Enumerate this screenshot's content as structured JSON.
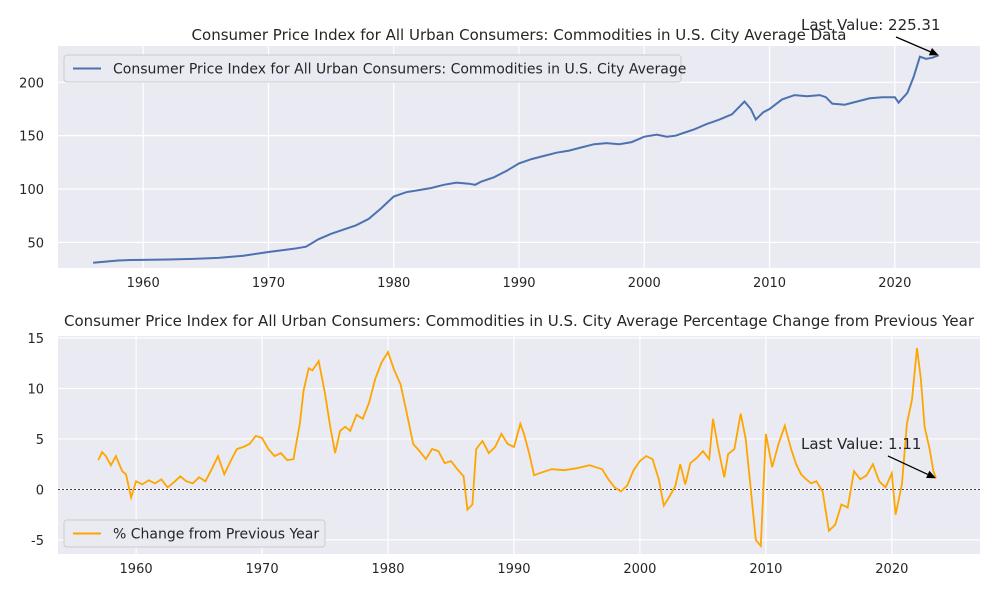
{
  "colors": {
    "axes_bg": "#eaeaf2",
    "grid": "#ffffff",
    "cpi_line": "#4c72b0",
    "pct_line": "#ffa500",
    "zero_line": "#000000",
    "text": "#262626"
  },
  "chart_data": [
    {
      "type": "line",
      "title": "Consumer Price Index for All Urban Consumers: Commodities in U.S. City Average Data",
      "xlabel": "",
      "ylabel": "",
      "xlim": [
        1953.2,
        2026.8
      ],
      "ylim": [
        26,
        234
      ],
      "xticks": [
        1960,
        1970,
        1980,
        1990,
        2000,
        2010,
        2020
      ],
      "yticks": [
        50,
        100,
        150,
        200
      ],
      "grid": true,
      "legend_position": "top-left",
      "series": [
        {
          "name": "Consumer Price Index for All Urban Consumers: Commodities in U.S. City Average",
          "x": [
            1956.0,
            1957.0,
            1958.0,
            1959.0,
            1960.0,
            1962.0,
            1964.0,
            1966.0,
            1968.0,
            1970.0,
            1972.0,
            1973.0,
            1974.0,
            1975.0,
            1976.0,
            1977.0,
            1978.0,
            1979.0,
            1980.0,
            1981.0,
            1982.0,
            1983.0,
            1984.0,
            1985.0,
            1986.0,
            1986.5,
            1987.0,
            1988.0,
            1989.0,
            1990.0,
            1991.0,
            1992.0,
            1993.0,
            1994.0,
            1995.0,
            1996.0,
            1997.0,
            1998.0,
            1999.0,
            2000.0,
            2001.0,
            2001.8,
            2002.5,
            2003.0,
            2004.0,
            2005.0,
            2005.5,
            2006.0,
            2007.0,
            2008.0,
            2008.5,
            2008.9,
            2009.5,
            2010.0,
            2011.0,
            2012.0,
            2013.0,
            2014.0,
            2014.5,
            2015.0,
            2016.0,
            2017.0,
            2018.0,
            2019.0,
            2020.0,
            2020.3,
            2021.0,
            2021.5,
            2022.0,
            2022.5,
            2023.0,
            2023.5
          ],
          "y": [
            31,
            32,
            33,
            33.5,
            33.6,
            34,
            34.5,
            35.5,
            37.5,
            41,
            44,
            46,
            53,
            58,
            62,
            66,
            72,
            82,
            93,
            97,
            99,
            101,
            104,
            106,
            105,
            104,
            107,
            111,
            117,
            124,
            128,
            131,
            134,
            136,
            139,
            142,
            143,
            142,
            144,
            149,
            151,
            149,
            150,
            152,
            156,
            161,
            163,
            165,
            170,
            182,
            175,
            165,
            172,
            175,
            184,
            188,
            187,
            188,
            186,
            180,
            179,
            182,
            185,
            186,
            186,
            181,
            190,
            205,
            224,
            222,
            223,
            225.31
          ]
        }
      ],
      "annotations": [
        {
          "text": "Last Value: 225.31",
          "x": 2023.5,
          "y": 225.31
        }
      ]
    },
    {
      "type": "line",
      "title": "Consumer Price Index for All Urban Consumers: Commodities in U.S. City Average Percentage Change from Previous Year",
      "xlabel": "",
      "ylabel": "",
      "xlim": [
        1953.8,
        2027.0
      ],
      "ylim": [
        -6.4,
        15.2
      ],
      "xticks": [
        1960,
        1970,
        1980,
        1990,
        2000,
        2010,
        2020
      ],
      "yticks": [
        -5,
        0,
        5,
        10,
        15
      ],
      "grid": true,
      "legend_position": "bottom-left",
      "reference_line": 0,
      "series": [
        {
          "name": "% Change from Previous Year",
          "x": [
            1957.0,
            1957.3,
            1957.6,
            1958.0,
            1958.4,
            1958.9,
            1959.2,
            1959.6,
            1960.0,
            1960.5,
            1961.0,
            1961.5,
            1962.0,
            1962.5,
            1963.0,
            1963.5,
            1964.0,
            1964.5,
            1965.0,
            1965.5,
            1966.0,
            1966.5,
            1967.0,
            1967.5,
            1968.0,
            1968.5,
            1969.0,
            1969.5,
            1970.0,
            1970.5,
            1971.0,
            1971.5,
            1972.0,
            1972.5,
            1973.0,
            1973.3,
            1973.7,
            1974.0,
            1974.5,
            1975.0,
            1975.4,
            1975.8,
            1976.2,
            1976.6,
            1977.0,
            1977.5,
            1978.0,
            1978.5,
            1979.0,
            1979.5,
            1980.0,
            1980.5,
            1981.0,
            1981.5,
            1982.0,
            1982.5,
            1983.0,
            1983.5,
            1984.0,
            1984.5,
            1985.0,
            1985.5,
            1986.0,
            1986.3,
            1986.7,
            1987.0,
            1987.5,
            1988.0,
            1988.5,
            1989.0,
            1989.5,
            1990.0,
            1990.5,
            1990.8,
            1991.2,
            1991.6,
            1992.0,
            1993.0,
            1994.0,
            1995.0,
            1996.0,
            1997.0,
            1997.5,
            1998.0,
            1998.5,
            1999.0,
            1999.5,
            2000.0,
            2000.5,
            2001.0,
            2001.5,
            2001.9,
            2002.3,
            2002.8,
            2003.2,
            2003.6,
            2004.0,
            2004.5,
            2005.0,
            2005.5,
            2005.8,
            2006.2,
            2006.7,
            2007.0,
            2007.5,
            2008.0,
            2008.4,
            2008.8,
            2009.2,
            2009.6,
            2010.0,
            2010.5,
            2011.0,
            2011.5,
            2012.0,
            2012.4,
            2012.8,
            2013.2,
            2013.6,
            2014.0,
            2014.5,
            2015.0,
            2015.5,
            2016.0,
            2016.5,
            2017.0,
            2017.5,
            2018.0,
            2018.5,
            2019.0,
            2019.5,
            2020.0,
            2020.3,
            2020.8,
            2021.2,
            2021.6,
            2022.0,
            2022.3,
            2022.6,
            2023.0,
            2023.3,
            2023.5
          ],
          "y": [
            2.9,
            3.7,
            3.3,
            2.4,
            3.3,
            1.8,
            1.5,
            -0.8,
            0.8,
            0.5,
            0.9,
            0.6,
            1.0,
            0.2,
            0.7,
            1.3,
            0.8,
            0.6,
            1.2,
            0.8,
            2.0,
            3.3,
            1.5,
            2.8,
            4.0,
            4.2,
            4.5,
            5.3,
            5.1,
            4.0,
            3.3,
            3.6,
            2.9,
            3.0,
            6.5,
            9.8,
            12.0,
            11.8,
            12.7,
            9.5,
            6.3,
            3.6,
            5.8,
            6.2,
            5.8,
            7.4,
            7.0,
            8.6,
            11.0,
            12.6,
            13.6,
            11.8,
            10.4,
            7.5,
            4.5,
            3.8,
            3.0,
            4.0,
            3.8,
            2.6,
            2.8,
            2.0,
            1.3,
            -2.0,
            -1.5,
            4.0,
            4.8,
            3.6,
            4.2,
            5.5,
            4.5,
            4.2,
            6.5,
            5.5,
            3.6,
            1.4,
            1.6,
            2.0,
            1.9,
            2.1,
            2.4,
            2.0,
            1.0,
            0.2,
            -0.2,
            0.4,
            1.9,
            2.8,
            3.3,
            3.0,
            1.0,
            -1.6,
            -0.8,
            0.3,
            2.5,
            0.5,
            2.6,
            3.1,
            3.8,
            3.0,
            7.0,
            4.2,
            1.2,
            3.5,
            4.0,
            7.5,
            5.0,
            0.0,
            -5.0,
            -5.6,
            5.5,
            2.2,
            4.5,
            6.3,
            4.0,
            2.5,
            1.5,
            1.0,
            0.6,
            0.8,
            -0.2,
            -4.1,
            -3.5,
            -1.5,
            -1.8,
            1.8,
            1.0,
            1.4,
            2.5,
            0.8,
            0.2,
            1.6,
            -2.5,
            0.5,
            6.5,
            8.9,
            14.0,
            11.0,
            6.2,
            4.0,
            1.8,
            1.11
          ]
        }
      ],
      "annotations": [
        {
          "text": "Last Value: 1.11",
          "x": 2023.5,
          "y": 1.11
        }
      ]
    }
  ]
}
